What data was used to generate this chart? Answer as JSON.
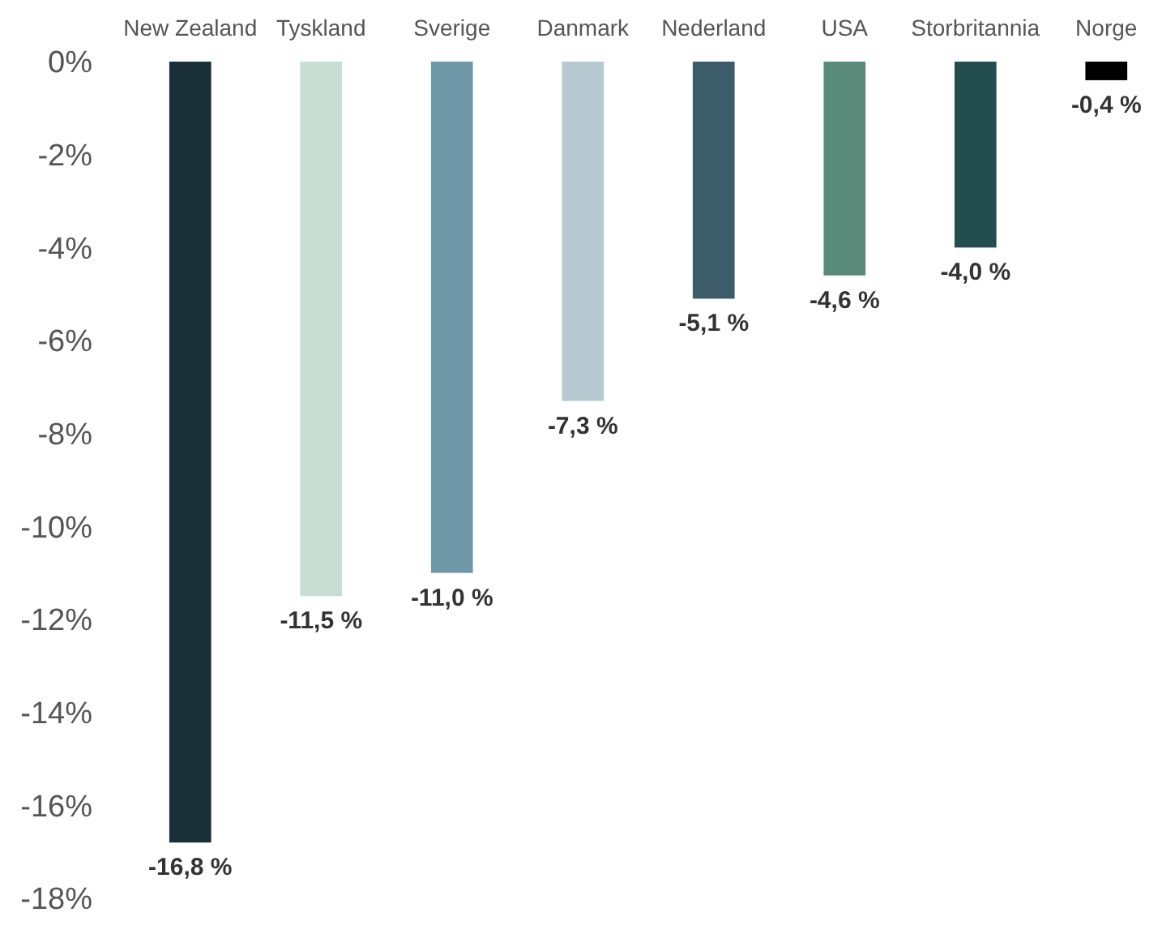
{
  "chart_data": {
    "type": "bar",
    "categories": [
      "New Zealand",
      "Tyskland",
      "Sverige",
      "Danmark",
      "Nederland",
      "USA",
      "Storbritannia",
      "Norge"
    ],
    "values": [
      -16.8,
      -11.5,
      -11.0,
      -7.3,
      -5.1,
      -4.6,
      -4.0,
      -0.4
    ],
    "colors": [
      "#1b2f38",
      "#c8ddd3",
      "#6f98a8",
      "#b6c9d1",
      "#3d5c69",
      "#5a8a7a",
      "#244d50",
      "#000000"
    ],
    "value_labels": [
      "-16,8 %",
      "-11,5 %",
      "-11,0 %",
      "-7,3 %",
      "-5,1 %",
      "-4,6 %",
      "-4,0 %",
      "-0,4 %"
    ],
    "ylim": [
      -18,
      0
    ],
    "yticks": [
      {
        "value": 0,
        "label": "0%"
      },
      {
        "value": -2,
        "label": "-2%"
      },
      {
        "value": -4,
        "label": "-4%"
      },
      {
        "value": -6,
        "label": "-6%"
      },
      {
        "value": -8,
        "label": "-8%"
      },
      {
        "value": -10,
        "label": "-10%"
      },
      {
        "value": -12,
        "label": "-12%"
      },
      {
        "value": -14,
        "label": "-14%"
      },
      {
        "value": -16,
        "label": "-16%"
      },
      {
        "value": -18,
        "label": "-18%"
      }
    ],
    "grid": false
  }
}
